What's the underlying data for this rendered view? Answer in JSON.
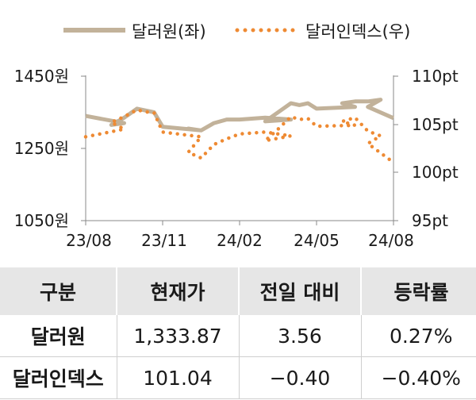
{
  "chart_data": {
    "type": "line",
    "x_ticks": [
      "23/08",
      "23/11",
      "24/02",
      "24/05",
      "24/08"
    ],
    "y_left": {
      "ticks": [
        "1450원",
        "1250원",
        "1050원"
      ],
      "range": [
        1050,
        1450
      ]
    },
    "y_right": {
      "ticks": [
        "110pt",
        "105pt",
        "100pt",
        "95pt"
      ],
      "range": [
        95,
        110
      ]
    },
    "legend": {
      "position": "top",
      "entries": [
        {
          "label": "달러원(좌)",
          "style": "solid"
        },
        {
          "label": "달러인덱스(우)",
          "style": "dotted"
        }
      ]
    },
    "grid": false,
    "series": [
      {
        "name": "달러원(좌)",
        "axis": "left",
        "color": "#c2b29a",
        "x": [
          "23/08",
          "23/08",
          "23/09",
          "23/09",
          "23/10",
          "23/10",
          "23/10",
          "23/11",
          "23/11",
          "23/12",
          "23/12",
          "24/01",
          "24/01",
          "24/02",
          "24/02",
          "24/02",
          "24/03",
          "24/03",
          "24/04",
          "24/04",
          "24/04",
          "24/05",
          "24/05",
          "24/06",
          "24/06",
          "24/07",
          "24/07",
          "24/08",
          "24/08"
        ],
        "values": [
          1340,
          1320,
          1315,
          1335,
          1360,
          1355,
          1350,
          1310,
          1300,
          1305,
          1300,
          1320,
          1330,
          1330,
          1335,
          1330,
          1325,
          1350,
          1375,
          1370,
          1375,
          1360,
          1365,
          1375,
          1380,
          1380,
          1385,
          1365,
          1333.87
        ]
      },
      {
        "name": "달러인덱스(우)",
        "axis": "right",
        "color": "#ee8a33",
        "x": [
          "23/08",
          "23/08",
          "23/09",
          "23/09",
          "23/10",
          "23/10",
          "23/10",
          "23/11",
          "23/11",
          "23/12",
          "23/12",
          "24/01",
          "24/01",
          "24/02",
          "24/02",
          "24/02",
          "24/03",
          "24/03",
          "24/04",
          "24/04",
          "24/04",
          "24/05",
          "24/05",
          "24/06",
          "24/06",
          "24/07",
          "24/07",
          "24/08",
          "24/08"
        ],
        "values": [
          103.7,
          104.5,
          105.2,
          105.8,
          106.5,
          106.3,
          106.2,
          104.2,
          103.7,
          102.1,
          101.5,
          102.9,
          103.5,
          104.0,
          104.2,
          103.8,
          103.3,
          104.5,
          105.8,
          105.5,
          105.6,
          104.8,
          104.9,
          105.3,
          105.7,
          104.3,
          103.8,
          103.0,
          101.04
        ]
      }
    ]
  },
  "table": {
    "headers": [
      "구분",
      "현재가",
      "전일 대비",
      "등락률"
    ],
    "rows": [
      [
        "달러원",
        "1,333.87",
        "3.56",
        "0.27%"
      ],
      [
        "달러인덱스",
        "101.04",
        "−0.40",
        "−0.40%"
      ]
    ]
  }
}
